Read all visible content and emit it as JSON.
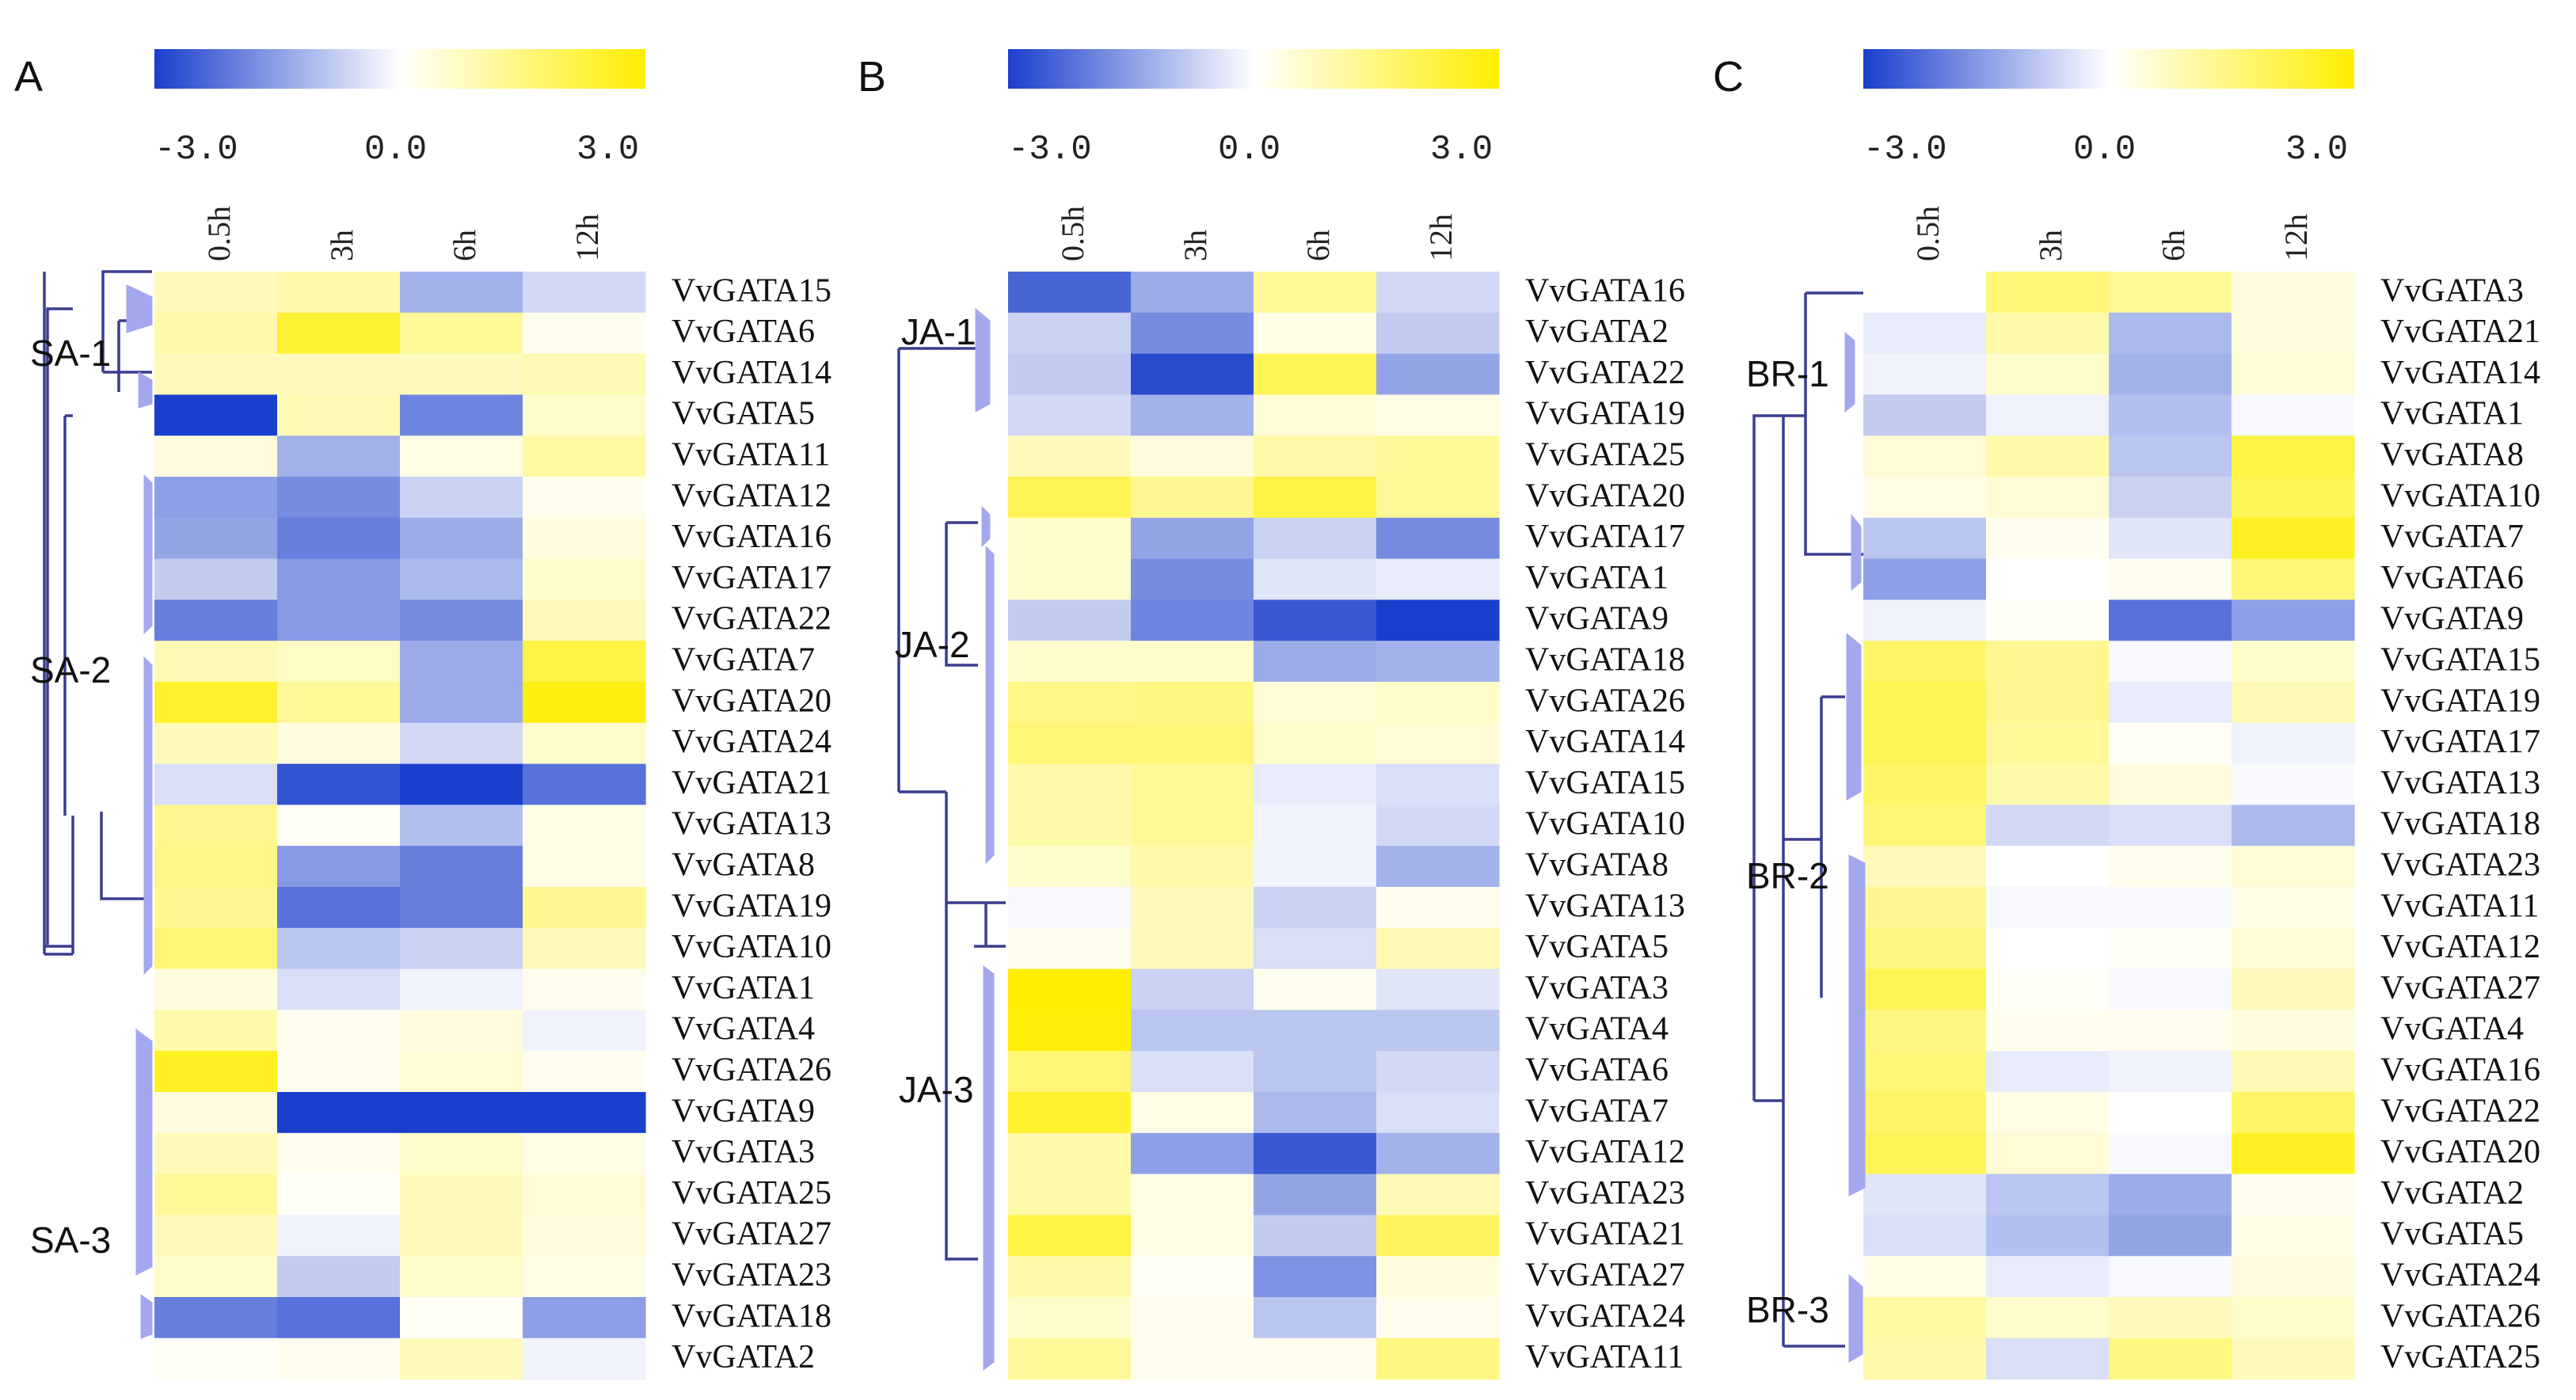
{
  "figure": {
    "colors": {
      "low": "#1a3fcc",
      "mid": "#ffffff",
      "high": "#ffee00",
      "dendrogram": "#3a3d8f"
    }
  },
  "chart_data": [
    {
      "type": "heatmap",
      "panel": "A",
      "scale": {
        "min": -3.0,
        "max": 3.0,
        "tick_labels": [
          "-3.0",
          "0.0",
          "3.0"
        ]
      },
      "columns": [
        "0.5h",
        "3h",
        "6h",
        "12h"
      ],
      "rows": [
        "VvGATA15",
        "VvGATA6",
        "VvGATA14",
        "VvGATA5",
        "VvGATA11",
        "VvGATA12",
        "VvGATA16",
        "VvGATA17",
        "VvGATA22",
        "VvGATA7",
        "VvGATA20",
        "VvGATA24",
        "VvGATA21",
        "VvGATA13",
        "VvGATA8",
        "VvGATA19",
        "VvGATA10",
        "VvGATA1",
        "VvGATA4",
        "VvGATA26",
        "VvGATA9",
        "VvGATA3",
        "VvGATA25",
        "VvGATA27",
        "VvGATA23",
        "VvGATA18",
        "VvGATA2"
      ],
      "values": [
        [
          0.8,
          1.0,
          -1.2,
          -0.6
        ],
        [
          1.0,
          2.4,
          1.2,
          0.2
        ],
        [
          0.8,
          0.8,
          0.8,
          0.9
        ],
        [
          -3.0,
          0.9,
          -1.9,
          0.6
        ],
        [
          0.4,
          -1.2,
          0.3,
          1.1
        ],
        [
          -1.5,
          -1.8,
          -0.7,
          0.2
        ],
        [
          -1.4,
          -2.0,
          -1.3,
          0.4
        ],
        [
          -0.8,
          -1.6,
          -1.1,
          0.6
        ],
        [
          -2.0,
          -1.6,
          -1.8,
          0.8
        ],
        [
          0.9,
          0.7,
          -1.3,
          2.2
        ],
        [
          2.5,
          1.2,
          -1.3,
          2.8
        ],
        [
          0.8,
          0.4,
          -0.6,
          0.6
        ],
        [
          -0.5,
          -2.7,
          -3.0,
          -2.2
        ],
        [
          1.3,
          0.1,
          -1.0,
          0.3
        ],
        [
          1.4,
          -1.6,
          -2.0,
          0.3
        ],
        [
          1.3,
          -2.2,
          -2.0,
          1.3
        ],
        [
          1.6,
          -0.9,
          -0.7,
          0.8
        ],
        [
          0.4,
          -0.5,
          -0.2,
          0.2
        ],
        [
          1.0,
          0.2,
          0.4,
          -0.2
        ],
        [
          2.6,
          0.2,
          0.5,
          0.2
        ],
        [
          0.4,
          -3.0,
          -3.0,
          -3.0
        ],
        [
          0.8,
          0.2,
          0.6,
          0.3
        ],
        [
          1.2,
          0.1,
          0.8,
          0.5
        ],
        [
          0.8,
          -0.2,
          0.8,
          0.4
        ],
        [
          0.6,
          -0.8,
          0.6,
          0.3
        ],
        [
          -2.0,
          -2.2,
          0.1,
          -1.5
        ],
        [
          0.1,
          0.2,
          0.8,
          -0.2
        ]
      ],
      "clusters": [
        "SA-1",
        "SA-2",
        "SA-3"
      ]
    },
    {
      "type": "heatmap",
      "panel": "B",
      "scale": {
        "min": -3.0,
        "max": 3.0,
        "tick_labels": [
          "-3.0",
          "0.0",
          "3.0"
        ]
      },
      "columns": [
        "0.5h",
        "3h",
        "6h",
        "12h"
      ],
      "rows": [
        "VvGATA16",
        "VvGATA2",
        "VvGATA22",
        "VvGATA19",
        "VvGATA25",
        "VvGATA20",
        "VvGATA17",
        "VvGATA1",
        "VvGATA9",
        "VvGATA18",
        "VvGATA26",
        "VvGATA14",
        "VvGATA15",
        "VvGATA10",
        "VvGATA8",
        "VvGATA13",
        "VvGATA5",
        "VvGATA3",
        "VvGATA4",
        "VvGATA6",
        "VvGATA7",
        "VvGATA12",
        "VvGATA23",
        "VvGATA21",
        "VvGATA27",
        "VvGATA24",
        "VvGATA11"
      ],
      "values": [
        [
          -2.4,
          -1.3,
          1.2,
          -0.6
        ],
        [
          -0.7,
          -1.8,
          0.3,
          -0.8
        ],
        [
          -0.8,
          -2.8,
          2.0,
          -1.4
        ],
        [
          -0.6,
          -1.2,
          0.5,
          0.3
        ],
        [
          0.8,
          0.4,
          1.0,
          1.2
        ],
        [
          2.0,
          1.3,
          2.2,
          1.2
        ],
        [
          0.6,
          -1.4,
          -0.7,
          -1.8
        ],
        [
          0.6,
          -1.8,
          -0.4,
          -0.3
        ],
        [
          -0.8,
          -1.9,
          -2.6,
          -3.0
        ],
        [
          0.6,
          0.6,
          -1.3,
          -1.2
        ],
        [
          1.4,
          1.5,
          0.5,
          0.6
        ],
        [
          1.6,
          1.6,
          0.6,
          0.5
        ],
        [
          1.0,
          1.2,
          -0.3,
          -0.5
        ],
        [
          1.0,
          1.2,
          -0.2,
          -0.6
        ],
        [
          0.6,
          1.0,
          -0.2,
          -1.2
        ],
        [
          -0.1,
          0.8,
          -0.7,
          0.2
        ],
        [
          0.2,
          0.8,
          -0.5,
          0.9
        ],
        [
          3.0,
          -0.7,
          0.2,
          -0.4
        ],
        [
          2.9,
          -0.9,
          -0.9,
          -0.9
        ],
        [
          1.6,
          -0.5,
          -0.9,
          -0.6
        ],
        [
          2.5,
          0.3,
          -1.1,
          -0.5
        ],
        [
          1.0,
          -1.5,
          -2.6,
          -1.2
        ],
        [
          1.0,
          0.3,
          -1.4,
          0.9
        ],
        [
          2.2,
          0.3,
          -0.8,
          1.9
        ],
        [
          1.0,
          0.1,
          -1.7,
          0.4
        ],
        [
          0.6,
          0.2,
          -0.9,
          0.2
        ],
        [
          1.2,
          0.2,
          0.2,
          1.5
        ]
      ],
      "clusters": [
        "JA-1",
        "JA-2",
        "JA-3"
      ]
    },
    {
      "type": "heatmap",
      "panel": "C",
      "scale": {
        "min": -3.0,
        "max": 3.0,
        "tick_labels": [
          "-3.0",
          "0.0",
          "3.0"
        ]
      },
      "columns": [
        "0.5h",
        "3h",
        "6h",
        "12h"
      ],
      "rows": [
        "VvGATA3",
        "VvGATA21",
        "VvGATA14",
        "VvGATA1",
        "VvGATA8",
        "VvGATA10",
        "VvGATA7",
        "VvGATA6",
        "VvGATA9",
        "VvGATA15",
        "VvGATA19",
        "VvGATA17",
        "VvGATA13",
        "VvGATA18",
        "VvGATA23",
        "VvGATA11",
        "VvGATA12",
        "VvGATA27",
        "VvGATA4",
        "VvGATA16",
        "VvGATA22",
        "VvGATA20",
        "VvGATA2",
        "VvGATA5",
        "VvGATA24",
        "VvGATA26",
        "VvGATA25"
      ],
      "values": [
        [
          0.0,
          1.6,
          1.2,
          0.4
        ],
        [
          -0.3,
          1.0,
          -1.1,
          0.4
        ],
        [
          -0.2,
          0.6,
          -1.2,
          0.5
        ],
        [
          -0.8,
          -0.2,
          -1.0,
          -0.1
        ],
        [
          0.5,
          1.0,
          -0.9,
          2.2
        ],
        [
          0.3,
          0.5,
          -0.7,
          2.0
        ],
        [
          -0.9,
          0.2,
          -0.4,
          2.6
        ],
        [
          -1.5,
          0.0,
          0.2,
          1.6
        ],
        [
          -0.2,
          0.1,
          -2.2,
          -1.5
        ],
        [
          1.8,
          1.3,
          -0.1,
          0.6
        ],
        [
          2.0,
          1.3,
          -0.3,
          0.9
        ],
        [
          2.0,
          1.2,
          0.1,
          -0.2
        ],
        [
          1.8,
          1.0,
          0.4,
          -0.1
        ],
        [
          1.6,
          -0.6,
          -0.5,
          -1.1
        ],
        [
          0.8,
          0.0,
          0.2,
          0.5
        ],
        [
          1.3,
          -0.1,
          -0.1,
          0.3
        ],
        [
          1.5,
          0.0,
          0.1,
          0.5
        ],
        [
          2.0,
          0.1,
          -0.1,
          0.8
        ],
        [
          1.5,
          0.2,
          0.2,
          0.4
        ],
        [
          1.6,
          -0.3,
          -0.2,
          0.9
        ],
        [
          1.8,
          0.3,
          0.0,
          1.8
        ],
        [
          2.0,
          0.5,
          -0.1,
          2.6
        ],
        [
          -0.4,
          -0.9,
          -1.3,
          0.2
        ],
        [
          -0.5,
          -1.0,
          -1.4,
          0.3
        ],
        [
          0.3,
          -0.3,
          -0.1,
          0.4
        ],
        [
          1.1,
          0.6,
          0.8,
          0.6
        ],
        [
          1.0,
          -0.5,
          1.5,
          0.8
        ]
      ],
      "clusters": [
        "BR-1",
        "BR-2",
        "BR-3"
      ]
    }
  ]
}
